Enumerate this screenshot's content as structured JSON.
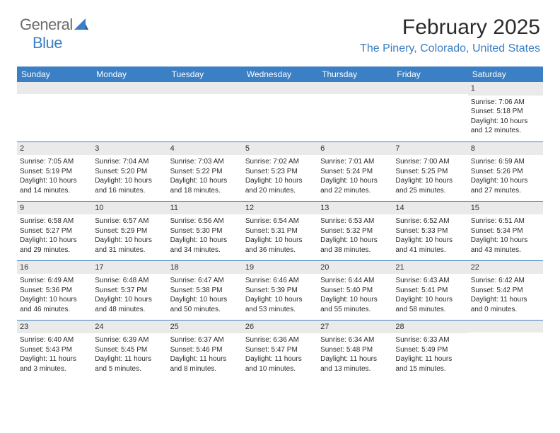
{
  "logo": {
    "word1": "General",
    "word2": "Blue"
  },
  "title": "February 2025",
  "location": "The Pinery, Colorado, United States",
  "colors": {
    "header_bg": "#3b7fc4",
    "header_text": "#ffffff",
    "daynum_bg": "#eaeaea",
    "border": "#3b7fc4",
    "text": "#2b2b2b",
    "accent": "#3b7fc4",
    "logo_gray": "#6b6b6b"
  },
  "day_headers": [
    "Sunday",
    "Monday",
    "Tuesday",
    "Wednesday",
    "Thursday",
    "Friday",
    "Saturday"
  ],
  "weeks": [
    [
      {
        "n": "",
        "lines": []
      },
      {
        "n": "",
        "lines": []
      },
      {
        "n": "",
        "lines": []
      },
      {
        "n": "",
        "lines": []
      },
      {
        "n": "",
        "lines": []
      },
      {
        "n": "",
        "lines": []
      },
      {
        "n": "1",
        "lines": [
          "Sunrise: 7:06 AM",
          "Sunset: 5:18 PM",
          "Daylight: 10 hours and 12 minutes."
        ]
      }
    ],
    [
      {
        "n": "2",
        "lines": [
          "Sunrise: 7:05 AM",
          "Sunset: 5:19 PM",
          "Daylight: 10 hours and 14 minutes."
        ]
      },
      {
        "n": "3",
        "lines": [
          "Sunrise: 7:04 AM",
          "Sunset: 5:20 PM",
          "Daylight: 10 hours and 16 minutes."
        ]
      },
      {
        "n": "4",
        "lines": [
          "Sunrise: 7:03 AM",
          "Sunset: 5:22 PM",
          "Daylight: 10 hours and 18 minutes."
        ]
      },
      {
        "n": "5",
        "lines": [
          "Sunrise: 7:02 AM",
          "Sunset: 5:23 PM",
          "Daylight: 10 hours and 20 minutes."
        ]
      },
      {
        "n": "6",
        "lines": [
          "Sunrise: 7:01 AM",
          "Sunset: 5:24 PM",
          "Daylight: 10 hours and 22 minutes."
        ]
      },
      {
        "n": "7",
        "lines": [
          "Sunrise: 7:00 AM",
          "Sunset: 5:25 PM",
          "Daylight: 10 hours and 25 minutes."
        ]
      },
      {
        "n": "8",
        "lines": [
          "Sunrise: 6:59 AM",
          "Sunset: 5:26 PM",
          "Daylight: 10 hours and 27 minutes."
        ]
      }
    ],
    [
      {
        "n": "9",
        "lines": [
          "Sunrise: 6:58 AM",
          "Sunset: 5:27 PM",
          "Daylight: 10 hours and 29 minutes."
        ]
      },
      {
        "n": "10",
        "lines": [
          "Sunrise: 6:57 AM",
          "Sunset: 5:29 PM",
          "Daylight: 10 hours and 31 minutes."
        ]
      },
      {
        "n": "11",
        "lines": [
          "Sunrise: 6:56 AM",
          "Sunset: 5:30 PM",
          "Daylight: 10 hours and 34 minutes."
        ]
      },
      {
        "n": "12",
        "lines": [
          "Sunrise: 6:54 AM",
          "Sunset: 5:31 PM",
          "Daylight: 10 hours and 36 minutes."
        ]
      },
      {
        "n": "13",
        "lines": [
          "Sunrise: 6:53 AM",
          "Sunset: 5:32 PM",
          "Daylight: 10 hours and 38 minutes."
        ]
      },
      {
        "n": "14",
        "lines": [
          "Sunrise: 6:52 AM",
          "Sunset: 5:33 PM",
          "Daylight: 10 hours and 41 minutes."
        ]
      },
      {
        "n": "15",
        "lines": [
          "Sunrise: 6:51 AM",
          "Sunset: 5:34 PM",
          "Daylight: 10 hours and 43 minutes."
        ]
      }
    ],
    [
      {
        "n": "16",
        "lines": [
          "Sunrise: 6:49 AM",
          "Sunset: 5:36 PM",
          "Daylight: 10 hours and 46 minutes."
        ]
      },
      {
        "n": "17",
        "lines": [
          "Sunrise: 6:48 AM",
          "Sunset: 5:37 PM",
          "Daylight: 10 hours and 48 minutes."
        ]
      },
      {
        "n": "18",
        "lines": [
          "Sunrise: 6:47 AM",
          "Sunset: 5:38 PM",
          "Daylight: 10 hours and 50 minutes."
        ]
      },
      {
        "n": "19",
        "lines": [
          "Sunrise: 6:46 AM",
          "Sunset: 5:39 PM",
          "Daylight: 10 hours and 53 minutes."
        ]
      },
      {
        "n": "20",
        "lines": [
          "Sunrise: 6:44 AM",
          "Sunset: 5:40 PM",
          "Daylight: 10 hours and 55 minutes."
        ]
      },
      {
        "n": "21",
        "lines": [
          "Sunrise: 6:43 AM",
          "Sunset: 5:41 PM",
          "Daylight: 10 hours and 58 minutes."
        ]
      },
      {
        "n": "22",
        "lines": [
          "Sunrise: 6:42 AM",
          "Sunset: 5:42 PM",
          "Daylight: 11 hours and 0 minutes."
        ]
      }
    ],
    [
      {
        "n": "23",
        "lines": [
          "Sunrise: 6:40 AM",
          "Sunset: 5:43 PM",
          "Daylight: 11 hours and 3 minutes."
        ]
      },
      {
        "n": "24",
        "lines": [
          "Sunrise: 6:39 AM",
          "Sunset: 5:45 PM",
          "Daylight: 11 hours and 5 minutes."
        ]
      },
      {
        "n": "25",
        "lines": [
          "Sunrise: 6:37 AM",
          "Sunset: 5:46 PM",
          "Daylight: 11 hours and 8 minutes."
        ]
      },
      {
        "n": "26",
        "lines": [
          "Sunrise: 6:36 AM",
          "Sunset: 5:47 PM",
          "Daylight: 11 hours and 10 minutes."
        ]
      },
      {
        "n": "27",
        "lines": [
          "Sunrise: 6:34 AM",
          "Sunset: 5:48 PM",
          "Daylight: 11 hours and 13 minutes."
        ]
      },
      {
        "n": "28",
        "lines": [
          "Sunrise: 6:33 AM",
          "Sunset: 5:49 PM",
          "Daylight: 11 hours and 15 minutes."
        ]
      },
      {
        "n": "",
        "lines": []
      }
    ]
  ]
}
